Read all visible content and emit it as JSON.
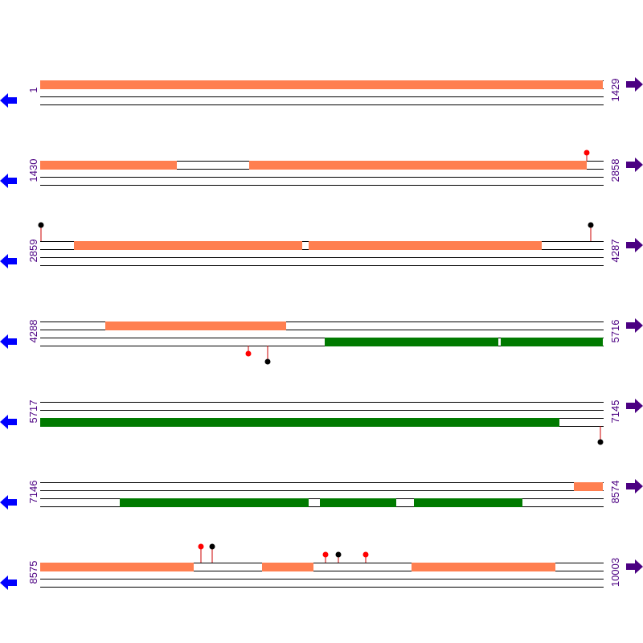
{
  "rows": [
    {
      "start": "1",
      "end": "1429"
    },
    {
      "start": "1430",
      "end": "2858"
    },
    {
      "start": "2859",
      "end": "4287"
    },
    {
      "start": "4288",
      "end": "5716"
    },
    {
      "start": "5717",
      "end": "7145"
    },
    {
      "start": "7146",
      "end": "8574"
    },
    {
      "start": "8575",
      "end": "10003"
    }
  ]
}
